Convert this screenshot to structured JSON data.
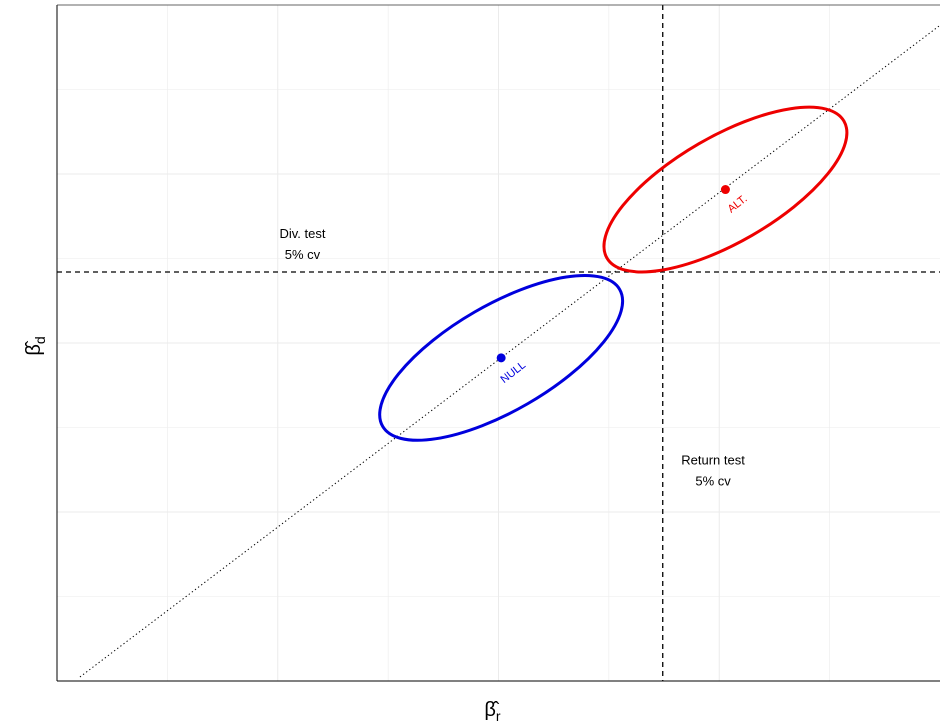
{
  "chart_data": {
    "type": "scatter",
    "title": "",
    "xlabel": "β̂r",
    "ylabel": "β̂d",
    "xlabel_parts": {
      "base": "β̂",
      "sub": "r"
    },
    "ylabel_parts": {
      "base": "β̂",
      "sub": "d"
    },
    "xlim": [
      0,
      1
    ],
    "ylim": [
      0,
      1
    ],
    "grid": true,
    "axis_ticks_shown": false,
    "series": [
      {
        "name": "NULL",
        "color": "#0000dd",
        "center": [
          0.503,
          0.478
        ],
        "ellipse": {
          "semi_major": 0.155,
          "semi_minor": 0.06,
          "angle_deg": 30
        }
      },
      {
        "name": "ALT.",
        "color": "#ee0000",
        "center": [
          0.757,
          0.727
        ],
        "ellipse": {
          "semi_major": 0.155,
          "semi_minor": 0.06,
          "angle_deg": 30
        }
      }
    ],
    "reference_lines": [
      {
        "kind": "diagonal",
        "style": "dotted",
        "from": [
          0.026,
          0.006
        ],
        "to": [
          1.0,
          0.97
        ]
      },
      {
        "kind": "vertical",
        "style": "dashed",
        "x": 0.686
      },
      {
        "kind": "horizontal",
        "style": "dashed",
        "y": 0.605
      }
    ],
    "annotations": [
      {
        "lines": [
          "Div. test",
          "5% cv"
        ],
        "x": 0.278,
        "y": 0.655
      },
      {
        "lines": [
          "Return test",
          "5% cv"
        ],
        "x": 0.743,
        "y": 0.32
      }
    ]
  }
}
